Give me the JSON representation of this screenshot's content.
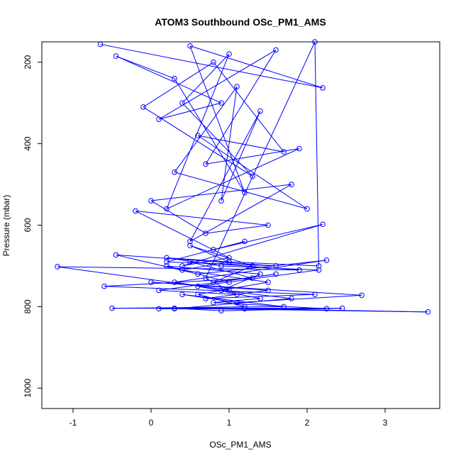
{
  "chart_data": {
    "type": "scatter",
    "title": "ATOM3 Southbound OSc_PM1_AMS",
    "xlabel": "OSc_PM1_AMS",
    "ylabel": "Pressure (mbar)",
    "xlim": [
      -1.4,
      3.7
    ],
    "ylim": [
      1050,
      150
    ],
    "y_reversed": true,
    "x_ticks": [
      "-1",
      "0",
      "1",
      "2",
      "3"
    ],
    "y_ticks": [
      "200",
      "400",
      "600",
      "800",
      "1000"
    ],
    "grid": false,
    "marker": "open-circle",
    "connected": true,
    "color": "#0000ff",
    "series": [
      {
        "points": [
          [
            -0.65,
            156
          ],
          [
            2.2,
            263
          ],
          [
            0.5,
            160
          ],
          [
            1.2,
            520
          ],
          [
            0.3,
            240
          ],
          [
            -0.45,
            185
          ],
          [
            0.9,
            300
          ],
          [
            0.1,
            340
          ],
          [
            1.6,
            170
          ],
          [
            0.7,
            450
          ],
          [
            1.9,
            412
          ],
          [
            0.2,
            560
          ],
          [
            1.0,
            180
          ],
          [
            0.4,
            300
          ],
          [
            1.3,
            480
          ],
          [
            -0.1,
            310
          ],
          [
            0.8,
            200
          ],
          [
            1.7,
            420
          ],
          [
            0.6,
            380
          ],
          [
            2.0,
            560
          ],
          [
            0.3,
            470
          ],
          [
            1.1,
            260
          ],
          [
            0.9,
            540
          ],
          [
            1.4,
            320
          ],
          [
            0.5,
            640
          ],
          [
            1.8,
            500
          ],
          [
            0.0,
            540
          ],
          [
            0.7,
            620
          ],
          [
            1.5,
            600
          ],
          [
            -0.2,
            565
          ],
          [
            1.0,
            680
          ],
          [
            0.4,
            700
          ],
          [
            2.2,
            598
          ],
          [
            0.8,
            660
          ],
          [
            1.2,
            640
          ],
          [
            0.2,
            690
          ],
          [
            1.6,
            700
          ],
          [
            -0.45,
            673
          ],
          [
            0.6,
            720
          ],
          [
            2.25,
            686
          ],
          [
            0.3,
            740
          ],
          [
            1.0,
            760
          ],
          [
            -1.2,
            702
          ],
          [
            1.9,
            710
          ],
          [
            0.5,
            690
          ],
          [
            1.3,
            730
          ],
          [
            -0.6,
            750
          ],
          [
            2.1,
            770
          ],
          [
            0.7,
            780
          ],
          [
            1.5,
            760
          ],
          [
            0.0,
            740
          ],
          [
            2.7,
            772
          ],
          [
            1.1,
            790
          ],
          [
            0.4,
            770
          ],
          [
            1.7,
            800
          ],
          [
            -0.5,
            804
          ],
          [
            2.45,
            804
          ],
          [
            0.9,
            810
          ],
          [
            0.3,
            804
          ],
          [
            3.55,
            813
          ],
          [
            1.2,
            805
          ],
          [
            0.1,
            805
          ],
          [
            2.25,
            805
          ],
          [
            0.8,
            790
          ],
          [
            1.4,
            780
          ],
          [
            0.6,
            750
          ],
          [
            2.15,
            710
          ],
          [
            0.9,
            700
          ],
          [
            0.2,
            680
          ],
          [
            1.0,
            690
          ],
          [
            0.5,
            650
          ],
          [
            1.3,
            700
          ],
          [
            0.8,
            740
          ],
          [
            1.6,
            720
          ],
          [
            0.1,
            760
          ],
          [
            1.1,
            770
          ],
          [
            0.7,
            730
          ],
          [
            2.1,
            150
          ],
          [
            2.15,
            700
          ],
          [
            1.0,
            690
          ],
          [
            0.4,
            710
          ],
          [
            1.5,
            740
          ],
          [
            0.6,
            770
          ],
          [
            1.2,
            800
          ],
          [
            0.3,
            805
          ],
          [
            1.8,
            780
          ],
          [
            0.9,
            760
          ],
          [
            1.4,
            720
          ],
          [
            0.2,
            700
          ],
          [
            1.0,
            740
          ]
        ]
      }
    ]
  }
}
